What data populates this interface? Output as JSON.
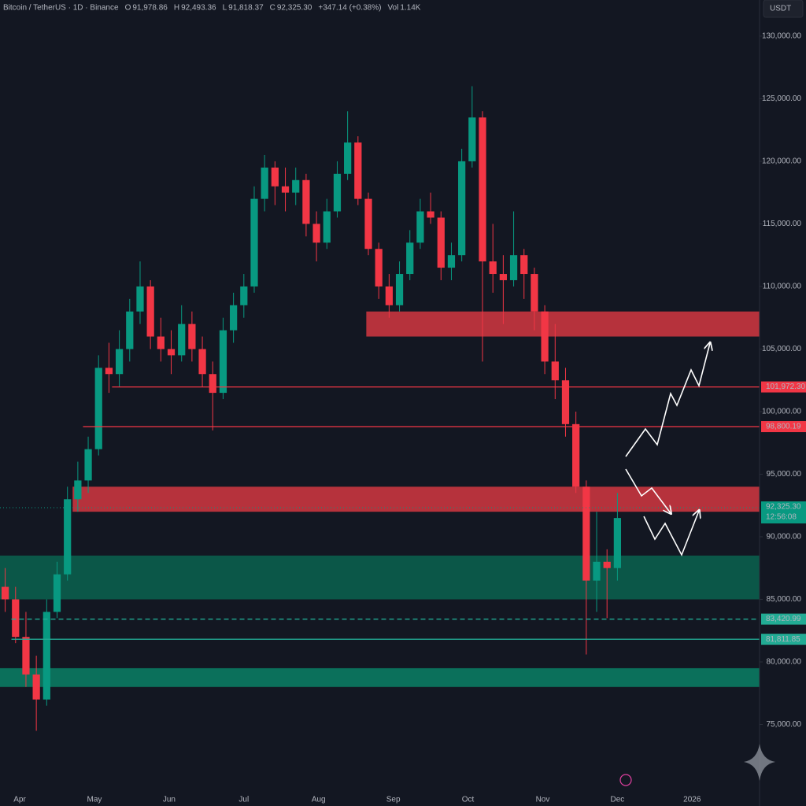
{
  "chart_data": {
    "type": "candlestick",
    "header": {
      "symbol": "Bitcoin / TetherUS · 1D · Binance",
      "fields": [
        {
          "label": "O",
          "value": "91,978.86"
        },
        {
          "label": "H",
          "value": "92,493.36"
        },
        {
          "label": "L",
          "value": "91,818.37"
        },
        {
          "label": "C",
          "value": "92,325.30"
        },
        {
          "label": "",
          "value": "+347.14 (+0.38%)"
        },
        {
          "label": "Vol",
          "value": "1.14K"
        }
      ]
    },
    "currency": "USDT",
    "up_color": "#089981",
    "down_color": "#f23645",
    "ohlc": [
      [
        86000,
        87500,
        84000,
        85000
      ],
      [
        85000,
        86000,
        81500,
        82000
      ],
      [
        82000,
        84000,
        78000,
        79000
      ],
      [
        79000,
        80500,
        74500,
        77000
      ],
      [
        77000,
        85000,
        76500,
        84000
      ],
      [
        84000,
        88000,
        83500,
        87000
      ],
      [
        87000,
        94000,
        86500,
        93000
      ],
      [
        93000,
        96000,
        92000,
        94500
      ],
      [
        94500,
        98000,
        93500,
        97000
      ],
      [
        97000,
        104500,
        96500,
        103500
      ],
      [
        103500,
        105500,
        101500,
        103000
      ],
      [
        103000,
        106500,
        102000,
        105000
      ],
      [
        105000,
        109000,
        104000,
        108000
      ],
      [
        108000,
        112000,
        107000,
        110000
      ],
      [
        110000,
        110500,
        105000,
        106000
      ],
      [
        106000,
        107500,
        104000,
        105000
      ],
      [
        105000,
        106500,
        103000,
        104500
      ],
      [
        104500,
        108500,
        104000,
        107000
      ],
      [
        107000,
        108000,
        104000,
        105000
      ],
      [
        105000,
        106000,
        102000,
        103000
      ],
      [
        103000,
        104000,
        98500,
        101500
      ],
      [
        101500,
        107500,
        101000,
        106500
      ],
      [
        106500,
        109500,
        105500,
        108500
      ],
      [
        108500,
        111000,
        107500,
        110000
      ],
      [
        110000,
        118000,
        109500,
        117000
      ],
      [
        117000,
        120500,
        116000,
        119500
      ],
      [
        119500,
        120000,
        116500,
        118000
      ],
      [
        118000,
        119500,
        116000,
        117500
      ],
      [
        117500,
        119500,
        116500,
        118500
      ],
      [
        118500,
        119000,
        114000,
        115000
      ],
      [
        115000,
        116000,
        112000,
        113500
      ],
      [
        113500,
        117000,
        113000,
        116000
      ],
      [
        116000,
        120000,
        115500,
        119000
      ],
      [
        119000,
        124000,
        118500,
        121500
      ],
      [
        121500,
        122000,
        116500,
        117000
      ],
      [
        117000,
        117500,
        112500,
        113000
      ],
      [
        113000,
        113500,
        109000,
        110000
      ],
      [
        110000,
        111000,
        107500,
        108500
      ],
      [
        108500,
        112000,
        108000,
        111000
      ],
      [
        111000,
        114500,
        110500,
        113500
      ],
      [
        113500,
        117000,
        113000,
        116000
      ],
      [
        116000,
        117500,
        115000,
        115500
      ],
      [
        115500,
        116000,
        110500,
        111500
      ],
      [
        111500,
        113500,
        110500,
        112500
      ],
      [
        112500,
        121000,
        112000,
        120000
      ],
      [
        120000,
        126000,
        119500,
        123500
      ],
      [
        123500,
        124000,
        104000,
        112000
      ],
      [
        112000,
        115000,
        109500,
        111000
      ],
      [
        111000,
        112500,
        107000,
        110500
      ],
      [
        110500,
        116000,
        110000,
        112500
      ],
      [
        112500,
        113000,
        109000,
        111000
      ],
      [
        111000,
        111500,
        106500,
        108000
      ],
      [
        108000,
        108500,
        103000,
        104000
      ],
      [
        104000,
        107000,
        101000,
        102500
      ],
      [
        102500,
        103500,
        98000,
        99000
      ],
      [
        99000,
        100000,
        93500,
        94000
      ],
      [
        94000,
        94500,
        80600,
        86500
      ],
      [
        86500,
        92000,
        84000,
        88000
      ],
      [
        88000,
        89000,
        83500,
        87500
      ],
      [
        87500,
        93500,
        86500,
        91500
      ]
    ],
    "xlim": [
      -0.5,
      72.7
    ],
    "xticks": [
      {
        "value": 1.4,
        "label": "Apr"
      },
      {
        "value": 8.6,
        "label": "May"
      },
      {
        "value": 15.8,
        "label": "Jun"
      },
      {
        "value": 23,
        "label": "Jul"
      },
      {
        "value": 30.2,
        "label": "Aug"
      },
      {
        "value": 37.4,
        "label": "Sep"
      },
      {
        "value": 44.6,
        "label": "Oct"
      },
      {
        "value": 51.8,
        "label": "Nov"
      },
      {
        "value": 59,
        "label": "Dec"
      },
      {
        "value": 66.2,
        "label": "2026"
      }
    ],
    "ylim": [
      70000,
      131000
    ],
    "yticks": [
      {
        "value": 130000,
        "label": "130,000.00"
      },
      {
        "value": 125000,
        "label": "125,000.00"
      },
      {
        "value": 120000,
        "label": "120,000.00"
      },
      {
        "value": 115000,
        "label": "115,000.00"
      },
      {
        "value": 110000,
        "label": "110,000.00"
      },
      {
        "value": 105000,
        "label": "105,000.00"
      },
      {
        "value": 100000,
        "label": "100,000.00"
      },
      {
        "value": 95000,
        "label": "95,000.00"
      },
      {
        "value": 90000,
        "label": "90,000.00"
      },
      {
        "value": 85000,
        "label": "85,000.00"
      },
      {
        "value": 80000,
        "label": "80,000.00"
      },
      {
        "value": 75000,
        "label": "75,000.00"
      }
    ],
    "zones": [
      {
        "from": 106000,
        "to": 108000,
        "start": 34.8,
        "color": "#c9353f"
      },
      {
        "from": 92000,
        "to": 94000,
        "start": 6.5,
        "color": "#c9353f"
      },
      {
        "from": 85000,
        "to": 88500,
        "start": -0.5,
        "color": "#0b5e4d"
      },
      {
        "from": 78000,
        "to": 79500,
        "start": -0.5,
        "color": "#0b7a62"
      }
    ],
    "lines": [
      {
        "value": 101972.3,
        "label": "101,972.30",
        "start": 10.3,
        "color": "#f23645",
        "dashed": false
      },
      {
        "value": 98800.19,
        "label": "98,800.19",
        "start": 7.5,
        "color": "#f23645",
        "dashed": false
      },
      {
        "value": 83420.99,
        "label": "83,420.99",
        "start": 0.6,
        "color": "#22ab94",
        "dashed": true
      },
      {
        "value": 81811.85,
        "label": "81,811.85",
        "start": 0.6,
        "color": "#22ab94",
        "dashed": false
      }
    ],
    "last_price": {
      "value": 92325.3,
      "label": "92,325.30",
      "countdown": "12:56:08",
      "color": "#089981"
    }
  }
}
